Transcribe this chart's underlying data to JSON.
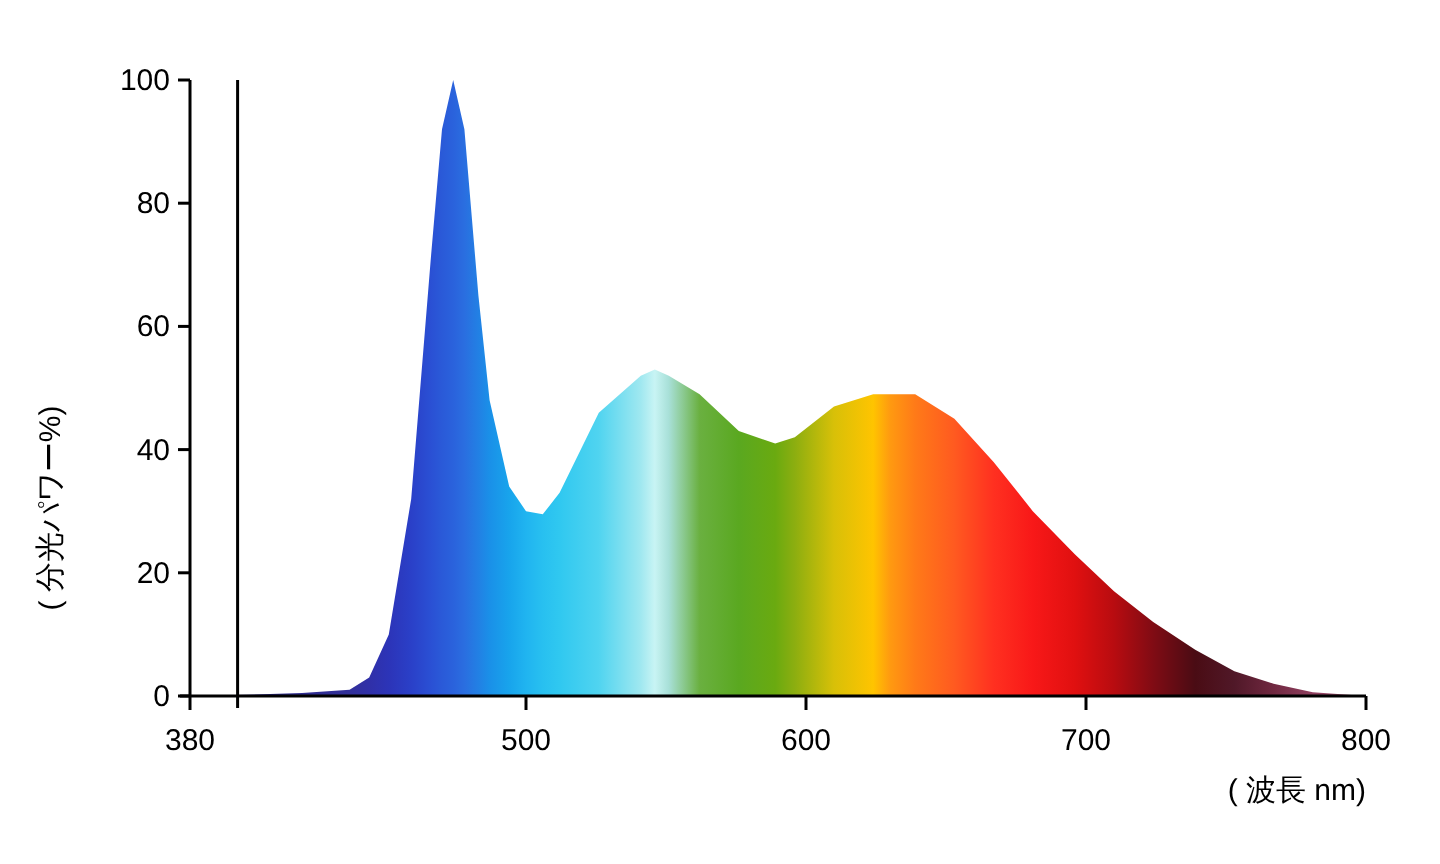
{
  "chart_data": {
    "type": "area",
    "ylabel": "( 分光パワー%)",
    "xlabel": "( 波長 nm)",
    "xlim": [
      380,
      800
    ],
    "xticks": [
      380,
      500,
      600,
      700,
      800
    ],
    "ylim": [
      0,
      100
    ],
    "yticks": [
      0,
      20,
      40,
      60,
      80,
      100
    ],
    "ref_lines": [
      {
        "axis": "x",
        "value": 397,
        "label": null,
        "color": "#000000"
      }
    ],
    "series": [
      {
        "x": [
          380,
          400,
          420,
          437,
          444,
          451,
          459,
          466,
          470,
          474,
          478,
          483,
          487,
          494,
          500,
          506,
          512,
          526,
          541,
          546,
          551,
          562,
          576,
          589,
          596,
          610,
          624,
          630,
          639,
          653,
          667,
          681,
          696,
          710,
          724,
          739,
          753,
          767,
          781,
          800
        ],
        "values": [
          0,
          0.2,
          0.5,
          1,
          3,
          10,
          32,
          71,
          92,
          100,
          92,
          65,
          48,
          34,
          30,
          29.5,
          33,
          46,
          52,
          53,
          52,
          49,
          43,
          41,
          42,
          47,
          49,
          49,
          49,
          45,
          38,
          30,
          23,
          17,
          12,
          7.5,
          4,
          2,
          0.6,
          0
        ],
        "colors": [
          "#2c2a80",
          "#2c2a88",
          "#302c90",
          "#32309a",
          "#3030a8",
          "#2c34b8",
          "#2a40c8",
          "#2a50d4",
          "#2a5ad8",
          "#2a62dc",
          "#2a6ee0",
          "#2280e4",
          "#1a90e8",
          "#18a4ec",
          "#20b4f0",
          "#28c0f0",
          "#30c8f0",
          "#50d4f0",
          "#a0e8f0",
          "#c8f4f4",
          "#a8e0d8",
          "#6ab040",
          "#5aa820",
          "#6aaa10",
          "#8cae10",
          "#d8c008",
          "#ffc400",
          "#ff9a10",
          "#ff7a18",
          "#ff5a20",
          "#ff3020",
          "#f81818",
          "#e01010",
          "#b80c10",
          "#800c14",
          "#4a0c14",
          "#501828",
          "#702840",
          "#904060",
          "#a05070"
        ]
      }
    ]
  }
}
